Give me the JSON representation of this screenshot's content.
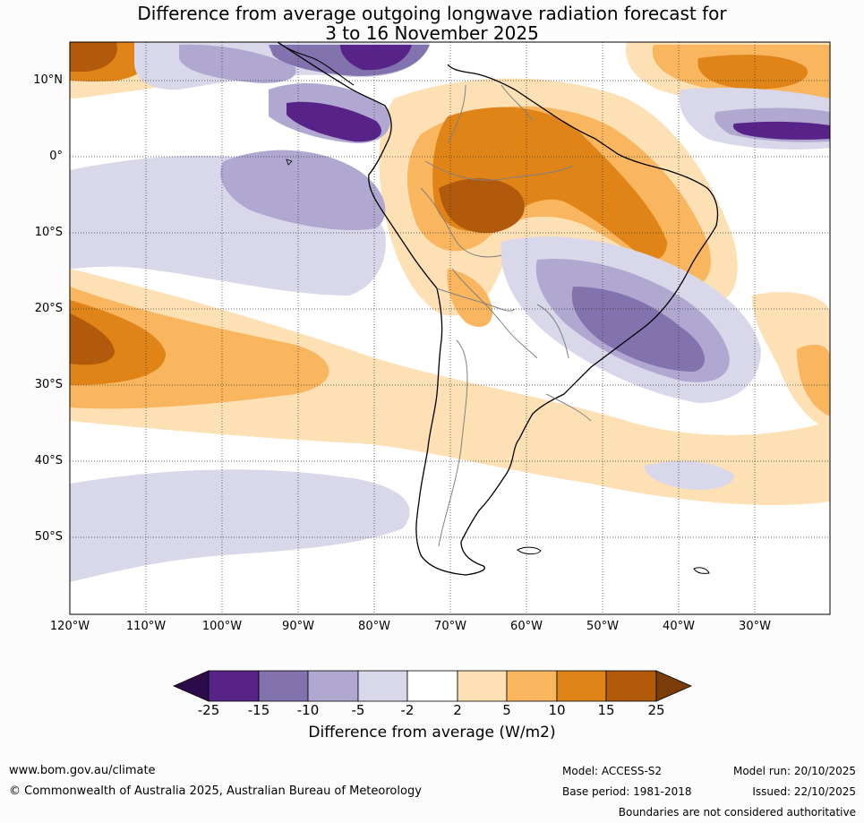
{
  "title_line1": "Difference from average outgoing longwave radiation forecast for",
  "title_line2": "3 to 16 November 2025",
  "lat_labels": [
    "10°N",
    "0°",
    "10°S",
    "20°S",
    "30°S",
    "40°S",
    "50°S"
  ],
  "lon_labels": [
    "120°W",
    "110°W",
    "100°W",
    "90°W",
    "80°W",
    "70°W",
    "60°W",
    "50°W",
    "40°W",
    "30°W"
  ],
  "colorbar": {
    "tick_labels": [
      "-25",
      "-15",
      "-10",
      "-5",
      "-2",
      "2",
      "5",
      "10",
      "15",
      "25"
    ],
    "colors": [
      "#2d0a4a",
      "#582389",
      "#8272ae",
      "#b0a8d1",
      "#d8d8ea",
      "#ffffff",
      "#fde0b4",
      "#fab65e",
      "#e08417",
      "#b15a0b",
      "#7a3d0a"
    ],
    "title": "Difference from average (W/m2)"
  },
  "footer": {
    "website": "www.bom.gov.au/climate",
    "copyright": "© Commonwealth of Australia 2025, Australian Bureau of Meteorology",
    "model": "Model: ACCESS-S2",
    "model_run": "Model run: 20/10/2025",
    "base_period": "Base period: 1981-2018",
    "issued": "Issued: 22/10/2025",
    "disclaimer": "Boundaries are not considered authoritative"
  }
}
